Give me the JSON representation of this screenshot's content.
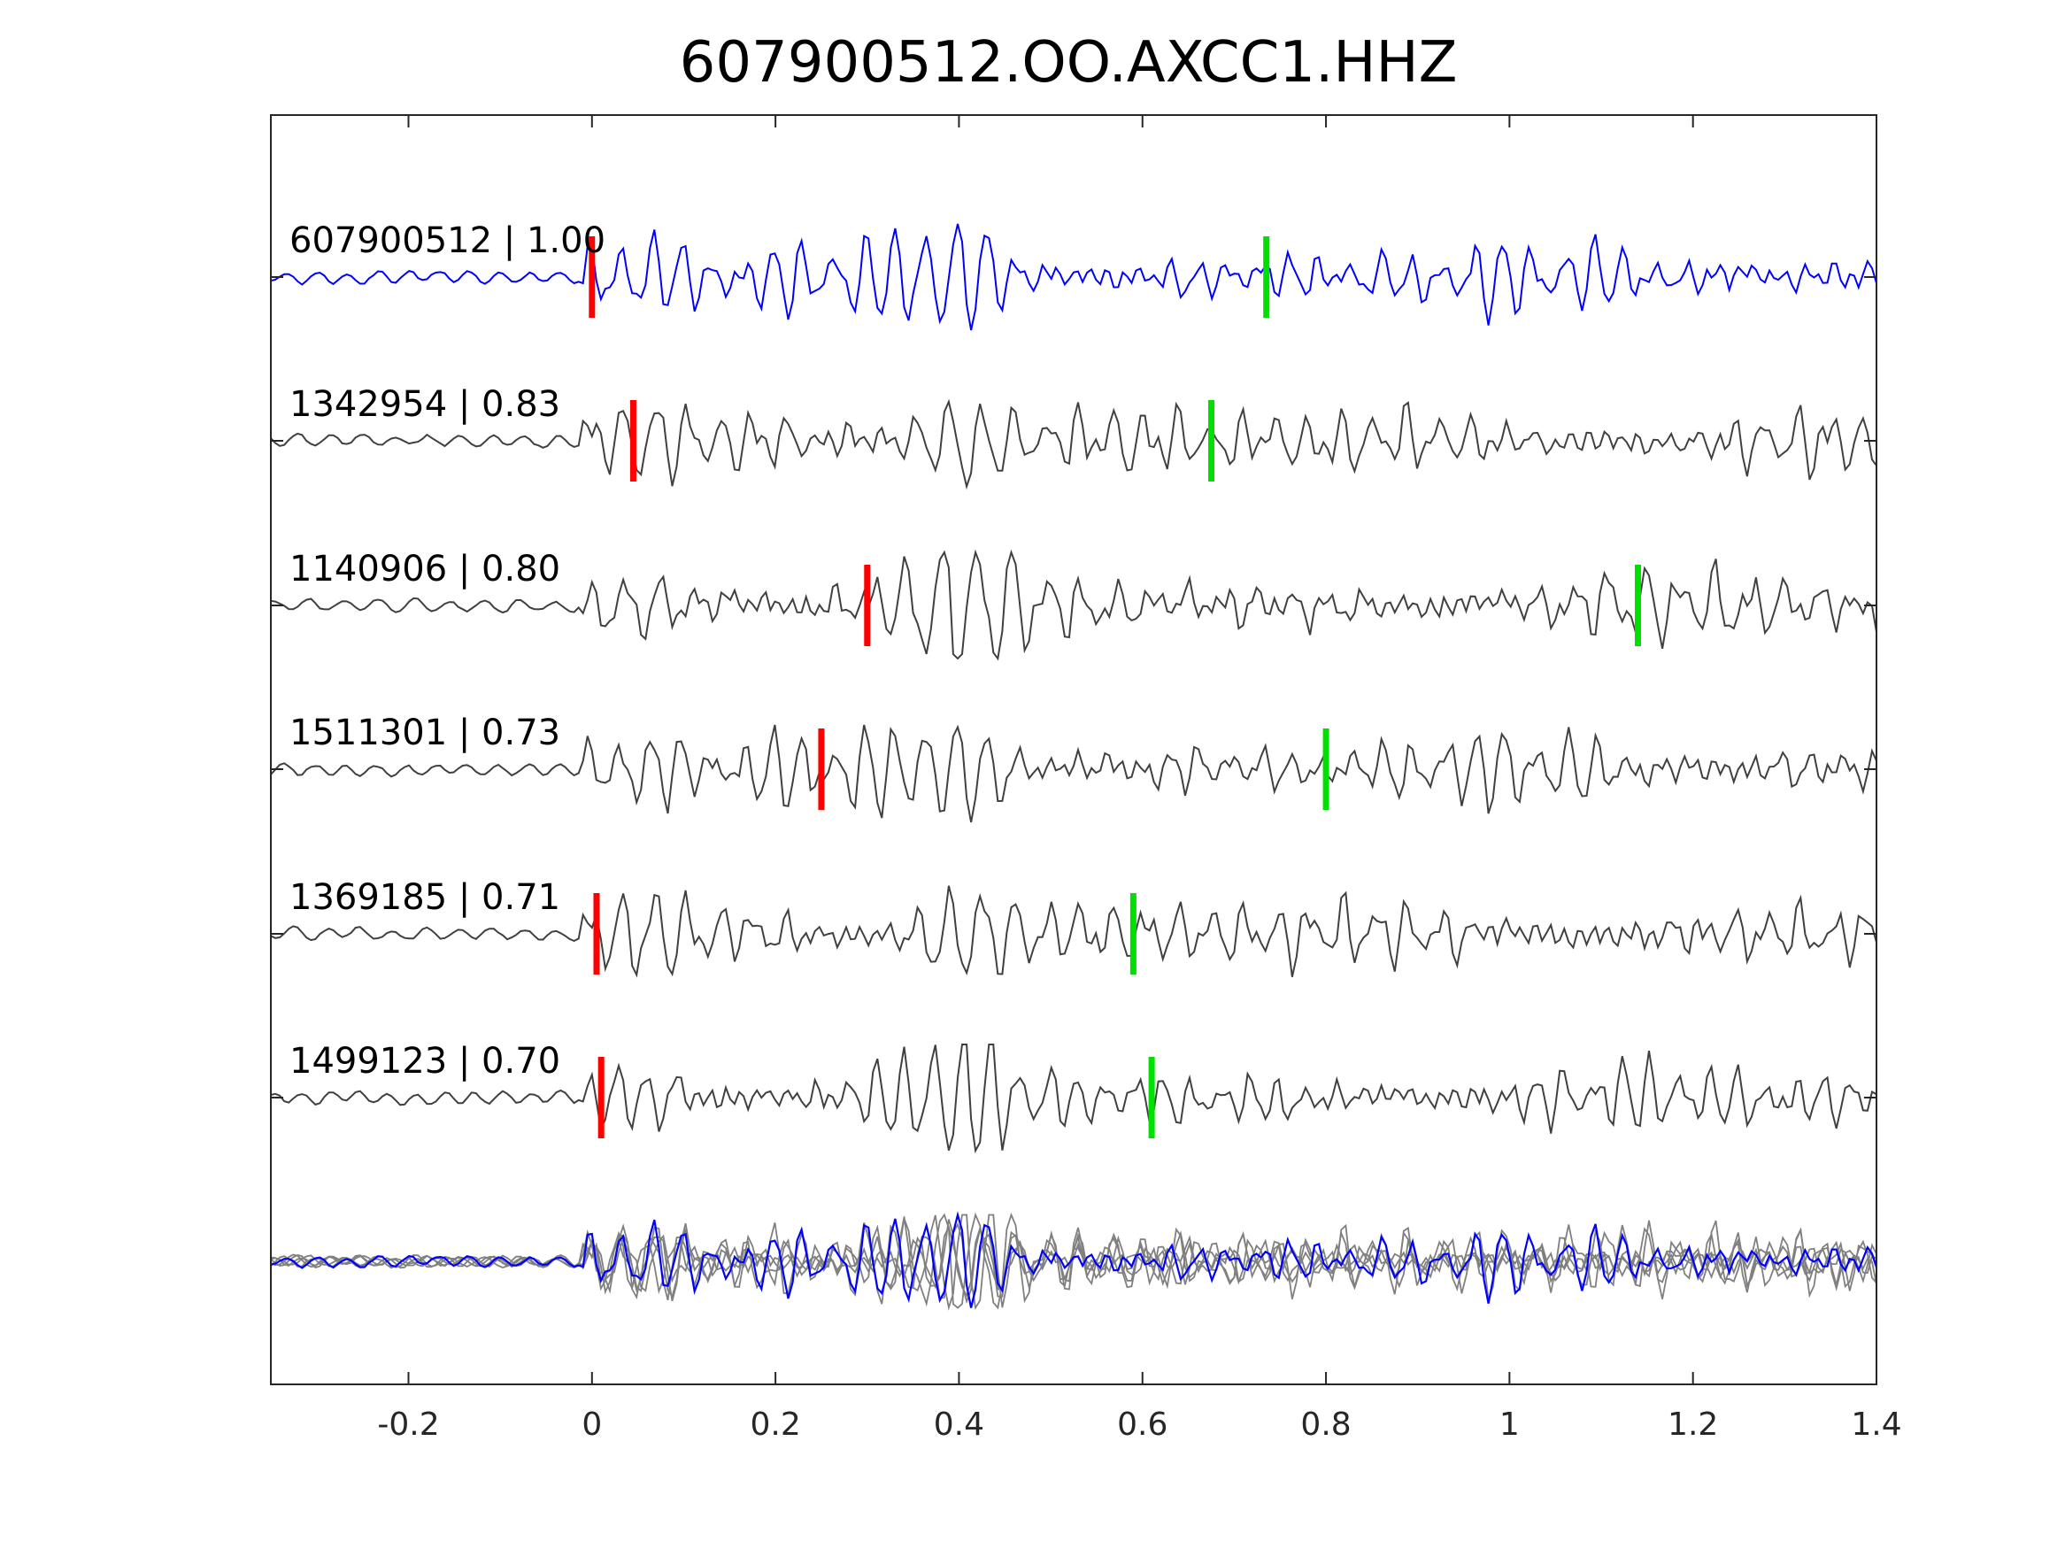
{
  "chart_data": {
    "type": "line",
    "title": "607900512.OO.AXCC1.HHZ",
    "xlabel": "",
    "ylabel": "",
    "xlim": [
      -0.35,
      1.4
    ],
    "x_ticks": [
      -0.2,
      0,
      0.2,
      0.4,
      0.6,
      0.8,
      1,
      1.2,
      1.4
    ],
    "x_tick_labels": [
      "-0.2",
      "0",
      "0.2",
      "0.4",
      "0.6",
      "0.8",
      "1",
      "1.2",
      "1.4"
    ],
    "grid": false,
    "colors": {
      "reference_trace": "#0000ff",
      "matched_trace": "#404040",
      "stack_trace": "#808080",
      "p_pick": "#ff0000",
      "s_pick": "#00e000",
      "axes": "#262626"
    },
    "traces": [
      {
        "label": "607900512 | 1.00",
        "event_id": "607900512",
        "correlation": 1.0,
        "p_pick": 0.0,
        "s_pick": 0.735,
        "reference": true
      },
      {
        "label": "1342954 | 0.83",
        "event_id": "1342954",
        "correlation": 0.83,
        "p_pick": 0.045,
        "s_pick": 0.675,
        "reference": false
      },
      {
        "label": "1140906 | 0.80",
        "event_id": "1140906",
        "correlation": 0.8,
        "p_pick": 0.3,
        "s_pick": 1.14,
        "reference": false
      },
      {
        "label": "1511301 | 0.73",
        "event_id": "1511301",
        "correlation": 0.73,
        "p_pick": 0.25,
        "s_pick": 0.8,
        "reference": false
      },
      {
        "label": "1369185 | 0.71",
        "event_id": "1369185",
        "correlation": 0.71,
        "p_pick": 0.005,
        "s_pick": 0.59,
        "reference": false
      },
      {
        "label": "1499123 | 0.70",
        "event_id": "1499123",
        "correlation": 0.7,
        "p_pick": 0.01,
        "s_pick": 0.61,
        "reference": false
      }
    ],
    "stack": {
      "description_visible": false
    }
  }
}
